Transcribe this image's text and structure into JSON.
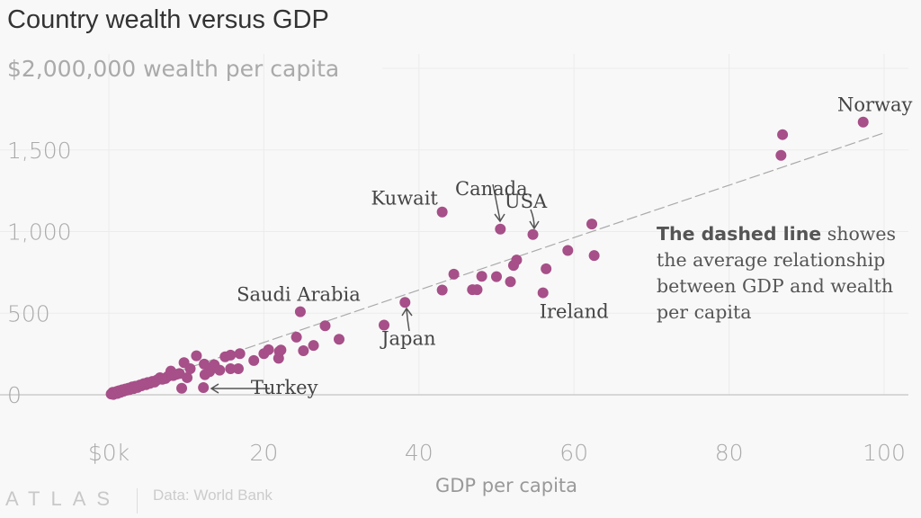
{
  "title": "Country wealth versus GDP",
  "source": "Data: World Bank",
  "logo": "ATLAS",
  "colors": {
    "point": "#a64f88",
    "text": "#444444",
    "tick": "#aaaaaa"
  },
  "note": {
    "bold": "The dashed line",
    "rest": " showes the average relationship between GDP and wealth per capita"
  },
  "chart_data": {
    "type": "scatter",
    "title": "Country wealth versus GDP",
    "xlabel": "GDP per capita",
    "ylabel": "$2,000,000 wealth per capita",
    "xlim": [
      0,
      100
    ],
    "ylim": [
      0,
      2000
    ],
    "x_ticks": [
      {
        "v": 0,
        "label": "$0k"
      },
      {
        "v": 20,
        "label": "20"
      },
      {
        "v": 40,
        "label": "40"
      },
      {
        "v": 60,
        "label": "60"
      },
      {
        "v": 80,
        "label": "80"
      },
      {
        "v": 100,
        "label": "100"
      }
    ],
    "y_ticks": [
      {
        "v": 0,
        "label": "0"
      },
      {
        "v": 500,
        "label": "500"
      },
      {
        "v": 1000,
        "label": "1,000"
      },
      {
        "v": 1500,
        "label": "1,500"
      },
      {
        "v": 2000,
        "label": "$2,000,000 wealth per capita"
      }
    ],
    "grid": true,
    "trend_line": {
      "style": "dashed",
      "from": [
        0,
        0
      ],
      "to": [
        100,
        1605
      ]
    },
    "points": [
      [
        0.3,
        5
      ],
      [
        0.5,
        15
      ],
      [
        0.6,
        2
      ],
      [
        0.8,
        10
      ],
      [
        1.0,
        20
      ],
      [
        1.1,
        8
      ],
      [
        1.3,
        25
      ],
      [
        1.5,
        15
      ],
      [
        1.7,
        30
      ],
      [
        1.9,
        22
      ],
      [
        2.1,
        35
      ],
      [
        2.3,
        28
      ],
      [
        2.5,
        40
      ],
      [
        2.7,
        32
      ],
      [
        3.0,
        48
      ],
      [
        3.2,
        38
      ],
      [
        3.4,
        52
      ],
      [
        3.7,
        45
      ],
      [
        4.0,
        60
      ],
      [
        4.2,
        55
      ],
      [
        4.5,
        68
      ],
      [
        4.8,
        62
      ],
      [
        5.0,
        75
      ],
      [
        5.3,
        70
      ],
      [
        5.6,
        82
      ],
      [
        5.9,
        78
      ],
      [
        6.2,
        90
      ],
      [
        6.6,
        105
      ],
      [
        6.9,
        95
      ],
      [
        7.3,
        100
      ],
      [
        7.6,
        112
      ],
      [
        8.0,
        145
      ],
      [
        8.3,
        118
      ],
      [
        8.7,
        125
      ],
      [
        9.1,
        130
      ],
      [
        9.4,
        40
      ],
      [
        9.7,
        197
      ],
      [
        10.1,
        105
      ],
      [
        10.5,
        160
      ],
      [
        11.3,
        239
      ],
      [
        12.2,
        44
      ],
      [
        12.3,
        188
      ],
      [
        12.4,
        123
      ],
      [
        13.0,
        142
      ],
      [
        13.6,
        184
      ],
      [
        14.3,
        151
      ],
      [
        15.0,
        233
      ],
      [
        15.7,
        243
      ],
      [
        15.7,
        160
      ],
      [
        16.7,
        160
      ],
      [
        16.9,
        252
      ],
      [
        18.7,
        210
      ],
      [
        20.0,
        252
      ],
      [
        20.6,
        276
      ],
      [
        21.9,
        224
      ],
      [
        22.0,
        266
      ],
      [
        22.2,
        274
      ],
      [
        24.2,
        353
      ],
      [
        24.7,
        509
      ],
      [
        25.1,
        270
      ],
      [
        26.4,
        302
      ],
      [
        27.9,
        423
      ],
      [
        29.7,
        340
      ],
      [
        35.5,
        427
      ],
      [
        38.2,
        566
      ],
      [
        43.0,
        1120
      ],
      [
        43.0,
        642
      ],
      [
        44.5,
        739
      ],
      [
        46.9,
        644
      ],
      [
        47.5,
        644
      ],
      [
        48.1,
        726
      ],
      [
        50.0,
        724
      ],
      [
        50.5,
        1015
      ],
      [
        51.8,
        693
      ],
      [
        52.2,
        793
      ],
      [
        52.6,
        826
      ],
      [
        54.7,
        982
      ],
      [
        56.0,
        625
      ],
      [
        56.4,
        772
      ],
      [
        59.2,
        884
      ],
      [
        62.3,
        1046
      ],
      [
        62.6,
        853
      ],
      [
        86.7,
        1467
      ],
      [
        86.9,
        1594
      ],
      [
        97.3,
        1671
      ]
    ],
    "annotations": [
      {
        "label": "Norway",
        "x": 97.3,
        "y": 1671
      },
      {
        "label": "Canada",
        "x": 50.5,
        "y": 1015
      },
      {
        "label": "USA",
        "x": 54.7,
        "y": 982
      },
      {
        "label": "Kuwait",
        "x": 43.0,
        "y": 1120
      },
      {
        "label": "Saudi Arabia",
        "x": 24.7,
        "y": 509
      },
      {
        "label": "Japan",
        "x": 38.2,
        "y": 566
      },
      {
        "label": "Ireland",
        "x": 56.0,
        "y": 625
      },
      {
        "label": "Turkey",
        "x": 12.2,
        "y": 44
      }
    ]
  }
}
